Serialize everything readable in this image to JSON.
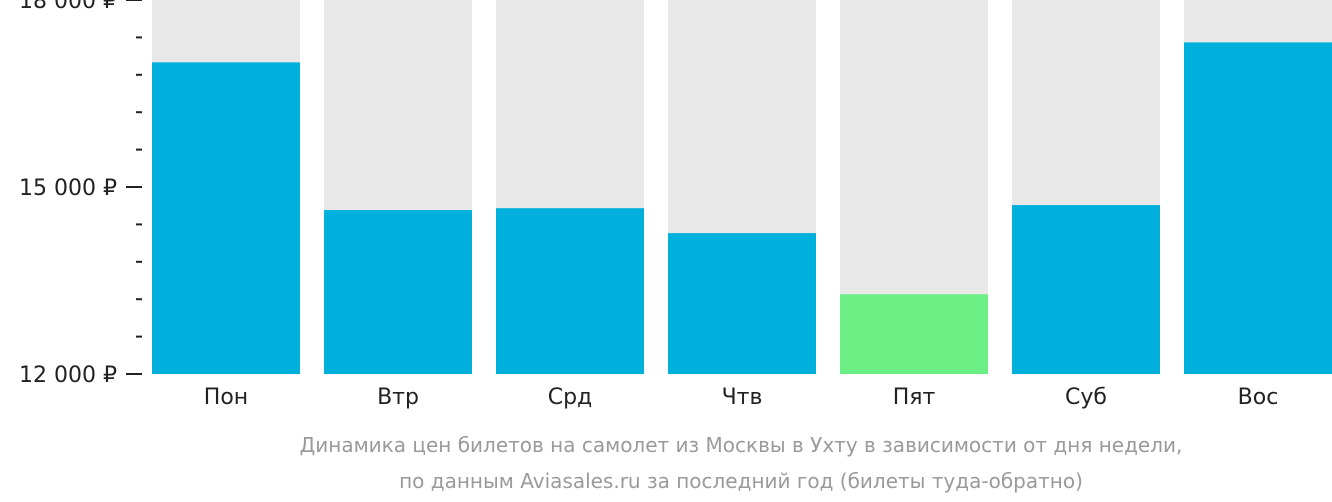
{
  "colors": {
    "bar": "#00b0dc",
    "bar_highlight": "#6bef85",
    "bar_background": "#e8e8e8",
    "tick": "#222222",
    "caption": "#9a9a9a"
  },
  "chart_data": {
    "type": "bar",
    "categories": [
      "Пон",
      "Втр",
      "Срд",
      "Чтв",
      "Пят",
      "Суб",
      "Вос"
    ],
    "values": [
      17.0,
      14.63,
      14.66,
      14.26,
      13.28,
      14.71,
      17.32
    ],
    "value_unit": "thousand rubles",
    "highlight_index": 4,
    "ylim": [
      12,
      18
    ],
    "yticks": [
      12,
      15,
      18
    ],
    "ytick_labels": [
      "12 000 ₽",
      "15 000 ₽",
      "18 000 ₽"
    ],
    "minor_ticks": [
      12.6,
      13.2,
      13.8,
      14.4,
      15.6,
      16.2,
      16.8,
      17.4
    ],
    "grid": false,
    "legend": "none"
  },
  "caption": {
    "line1": "Динамика цен билетов на самолет из Москвы в Ухту в зависимости от дня недели,",
    "line2": "по данным Aviasales.ru за последний год (билеты туда-обратно)"
  }
}
